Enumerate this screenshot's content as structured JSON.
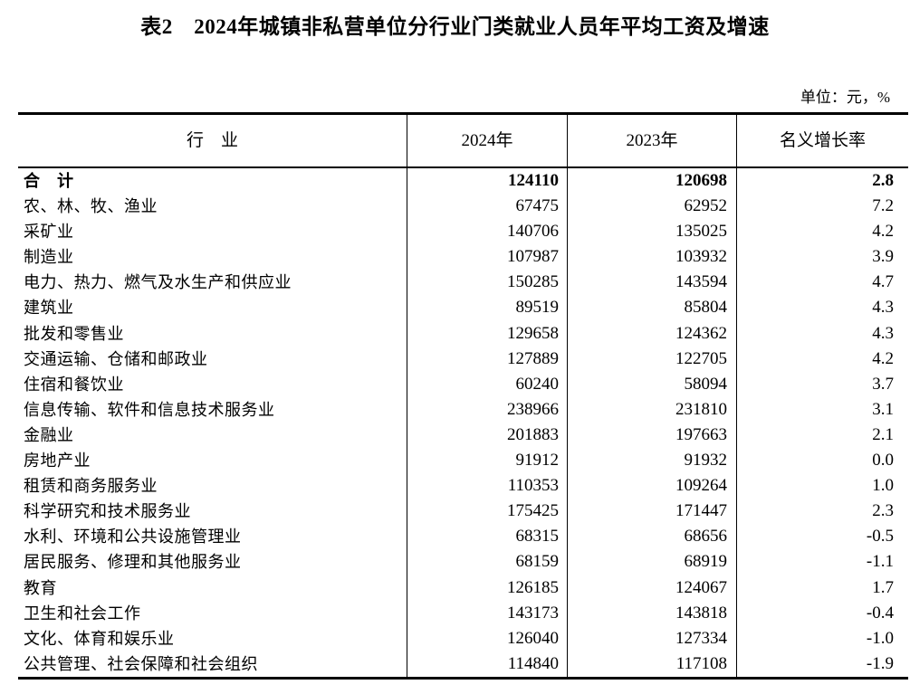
{
  "page": {
    "title": "表2　2024年城镇非私营单位分行业门类就业人员年平均工资及增速",
    "unit_note": "单位：元，%"
  },
  "table": {
    "headers": [
      "行　业",
      "2024年",
      "2023年",
      "名义增长率"
    ],
    "rows": [
      {
        "industry": "合　计",
        "y2024": "124110",
        "y2023": "120698",
        "growth": "2.8",
        "bold": true
      },
      {
        "industry": "农、林、牧、渔业",
        "y2024": "67475",
        "y2023": "62952",
        "growth": "7.2",
        "bold": false
      },
      {
        "industry": "采矿业",
        "y2024": "140706",
        "y2023": "135025",
        "growth": "4.2",
        "bold": false
      },
      {
        "industry": "制造业",
        "y2024": "107987",
        "y2023": "103932",
        "growth": "3.9",
        "bold": false
      },
      {
        "industry": "电力、热力、燃气及水生产和供应业",
        "y2024": "150285",
        "y2023": "143594",
        "growth": "4.7",
        "bold": false
      },
      {
        "industry": "建筑业",
        "y2024": "89519",
        "y2023": "85804",
        "growth": "4.3",
        "bold": false
      },
      {
        "industry": "批发和零售业",
        "y2024": "129658",
        "y2023": "124362",
        "growth": "4.3",
        "bold": false
      },
      {
        "industry": "交通运输、仓储和邮政业",
        "y2024": "127889",
        "y2023": "122705",
        "growth": "4.2",
        "bold": false
      },
      {
        "industry": "住宿和餐饮业",
        "y2024": "60240",
        "y2023": "58094",
        "growth": "3.7",
        "bold": false
      },
      {
        "industry": "信息传输、软件和信息技术服务业",
        "y2024": "238966",
        "y2023": "231810",
        "growth": "3.1",
        "bold": false
      },
      {
        "industry": "金融业",
        "y2024": "201883",
        "y2023": "197663",
        "growth": "2.1",
        "bold": false
      },
      {
        "industry": "房地产业",
        "y2024": "91912",
        "y2023": "91932",
        "growth": "0.0",
        "bold": false
      },
      {
        "industry": "租赁和商务服务业",
        "y2024": "110353",
        "y2023": "109264",
        "growth": "1.0",
        "bold": false
      },
      {
        "industry": "科学研究和技术服务业",
        "y2024": "175425",
        "y2023": "171447",
        "growth": "2.3",
        "bold": false
      },
      {
        "industry": "水利、环境和公共设施管理业",
        "y2024": "68315",
        "y2023": "68656",
        "growth": "-0.5",
        "bold": false
      },
      {
        "industry": "居民服务、修理和其他服务业",
        "y2024": "68159",
        "y2023": "68919",
        "growth": "-1.1",
        "bold": false
      },
      {
        "industry": "教育",
        "y2024": "126185",
        "y2023": "124067",
        "growth": "1.7",
        "bold": false
      },
      {
        "industry": "卫生和社会工作",
        "y2024": "143173",
        "y2023": "143818",
        "growth": "-0.4",
        "bold": false
      },
      {
        "industry": "文化、体育和娱乐业",
        "y2024": "126040",
        "y2023": "127334",
        "growth": "-1.0",
        "bold": false
      },
      {
        "industry": "公共管理、社会保障和社会组织",
        "y2024": "114840",
        "y2023": "117108",
        "growth": "-1.9",
        "bold": false
      }
    ]
  }
}
